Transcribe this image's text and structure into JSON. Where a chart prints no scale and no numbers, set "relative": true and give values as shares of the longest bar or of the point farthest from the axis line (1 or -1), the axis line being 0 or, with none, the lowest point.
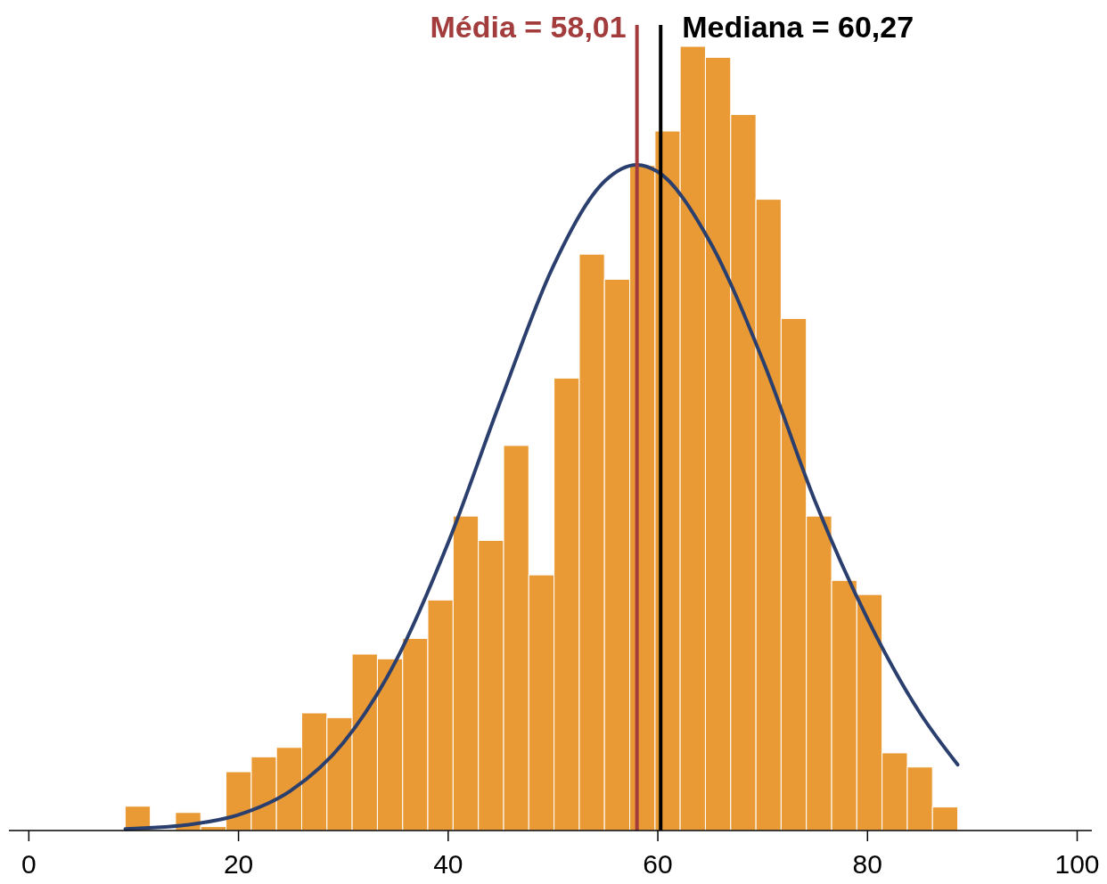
{
  "chart_data": {
    "type": "histogram",
    "relative": true,
    "xlim": [
      -1.9,
      101.4
    ],
    "xticks": [
      0,
      20,
      40,
      60,
      80,
      100
    ],
    "grid": false,
    "series": [
      {
        "color": "#e99a35",
        "bins": [
          9.18,
          11.59,
          13.99,
          16.4,
          18.81,
          21.22,
          23.62,
          26.03,
          28.44,
          30.84,
          33.25,
          35.66,
          38.06,
          40.47,
          42.88,
          45.29,
          47.69,
          50.1,
          52.51,
          54.91,
          57.32,
          59.73,
          62.13,
          64.54,
          66.95,
          69.36,
          71.76,
          74.17,
          76.58,
          78.98,
          81.39,
          83.8,
          86.2,
          88.61
        ],
        "values": [
          0.031,
          0,
          0.023,
          0.005,
          0.075,
          0.094,
          0.106,
          0.15,
          0.144,
          0.225,
          0.219,
          0.245,
          0.294,
          0.401,
          0.37,
          0.491,
          0.326,
          0.577,
          0.735,
          0.703,
          0.848,
          0.892,
          1,
          0.986,
          0.913,
          0.805,
          0.653,
          0.401,
          0.319,
          0.301,
          0.099,
          0.081,
          0.03
        ]
      },
      {
        "type": "line",
        "color": "#2b3f6e",
        "x": [
          9.2,
          15,
          20,
          25,
          30,
          35,
          40,
          45,
          50,
          55,
          58,
          60,
          65,
          70,
          75,
          80,
          85,
          88.6
        ],
        "values": [
          0.002,
          0.007,
          0.02,
          0.051,
          0.112,
          0.216,
          0.367,
          0.548,
          0.719,
          0.829,
          0.849,
          0.84,
          0.75,
          0.6,
          0.42,
          0.27,
          0.15,
          0.084
        ]
      }
    ],
    "ref_lines": [
      {
        "axis": "x",
        "value": 58.01,
        "label": "Média = 58,01",
        "color": "#a33c3c"
      },
      {
        "axis": "x",
        "value": 60.27,
        "label": "Mediana = 60,27",
        "color": "#000000"
      }
    ]
  }
}
